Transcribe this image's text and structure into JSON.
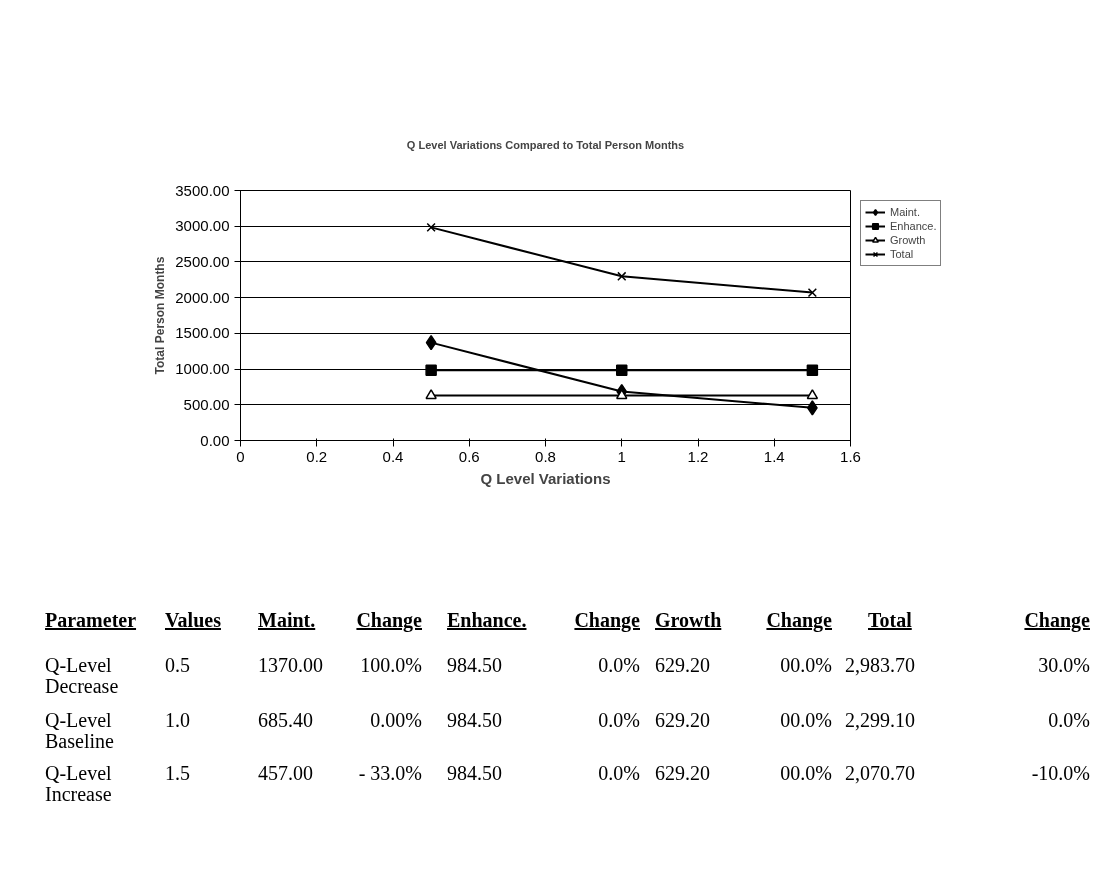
{
  "chart_data": {
    "type": "line",
    "title": "Q Level Variations Compared to Total Person Months",
    "xlabel": "Q Level Variations",
    "ylabel": "Total Person Months",
    "x": [
      0.5,
      1.0,
      1.5
    ],
    "series": [
      {
        "name": "Maint.",
        "color": "#000000",
        "marker": "diamond",
        "values": [
          1370.0,
          685.4,
          457.0
        ]
      },
      {
        "name": "Enhance.",
        "color": "#000000",
        "marker": "square",
        "values": [
          984.5,
          984.5,
          984.5
        ]
      },
      {
        "name": "Growth",
        "color": "#000000",
        "marker": "triangle",
        "values": [
          629.2,
          629.2,
          629.2
        ]
      },
      {
        "name": "Total",
        "color": "#000000",
        "marker": "cross",
        "values": [
          2983.7,
          2299.1,
          2070.7
        ]
      }
    ],
    "xlim": [
      0,
      1.6
    ],
    "xticks": [
      0,
      0.2,
      0.4,
      0.6,
      0.8,
      1,
      1.2,
      1.4,
      1.6
    ],
    "ylim": [
      0,
      3500
    ],
    "yticks": [
      {
        "value": 0,
        "label": "0.00"
      },
      {
        "value": 500,
        "label": "500.00"
      },
      {
        "value": 1000,
        "label": "1000.00"
      },
      {
        "value": 1500,
        "label": "1500.00"
      },
      {
        "value": 2000,
        "label": "2000.00"
      },
      {
        "value": 2500,
        "label": "2500.00"
      },
      {
        "value": 3000,
        "label": "3000.00"
      },
      {
        "value": 3500,
        "label": "3500.00"
      }
    ],
    "grid": "y",
    "legend": "right",
    "line_style": "solid",
    "annotations": [
      "Parameter",
      "Values",
      "Maint.",
      "Change",
      "Enhance.",
      "Change",
      "Growth",
      "Change",
      "Total",
      "Change",
      "Q-Level\nDecrease",
      "0.5",
      "1370.00",
      "100.0%",
      "984.50",
      "0.0%",
      "629.20",
      "00.0%",
      "2,983.70",
      "30.0%",
      "Q-Level\nBaseline",
      "1.0",
      "685.40",
      "0.00%",
      "984.50",
      "0.0%",
      "629.20",
      "00.0%",
      "2,299.10",
      "0.0%",
      "Q-Level\nIncrease",
      "1.5",
      "457.00",
      "- 33.0%",
      "984.50",
      "0.0%",
      "629.20",
      "00.0%",
      "2,070.70",
      "-10.0%"
    ]
  }
}
